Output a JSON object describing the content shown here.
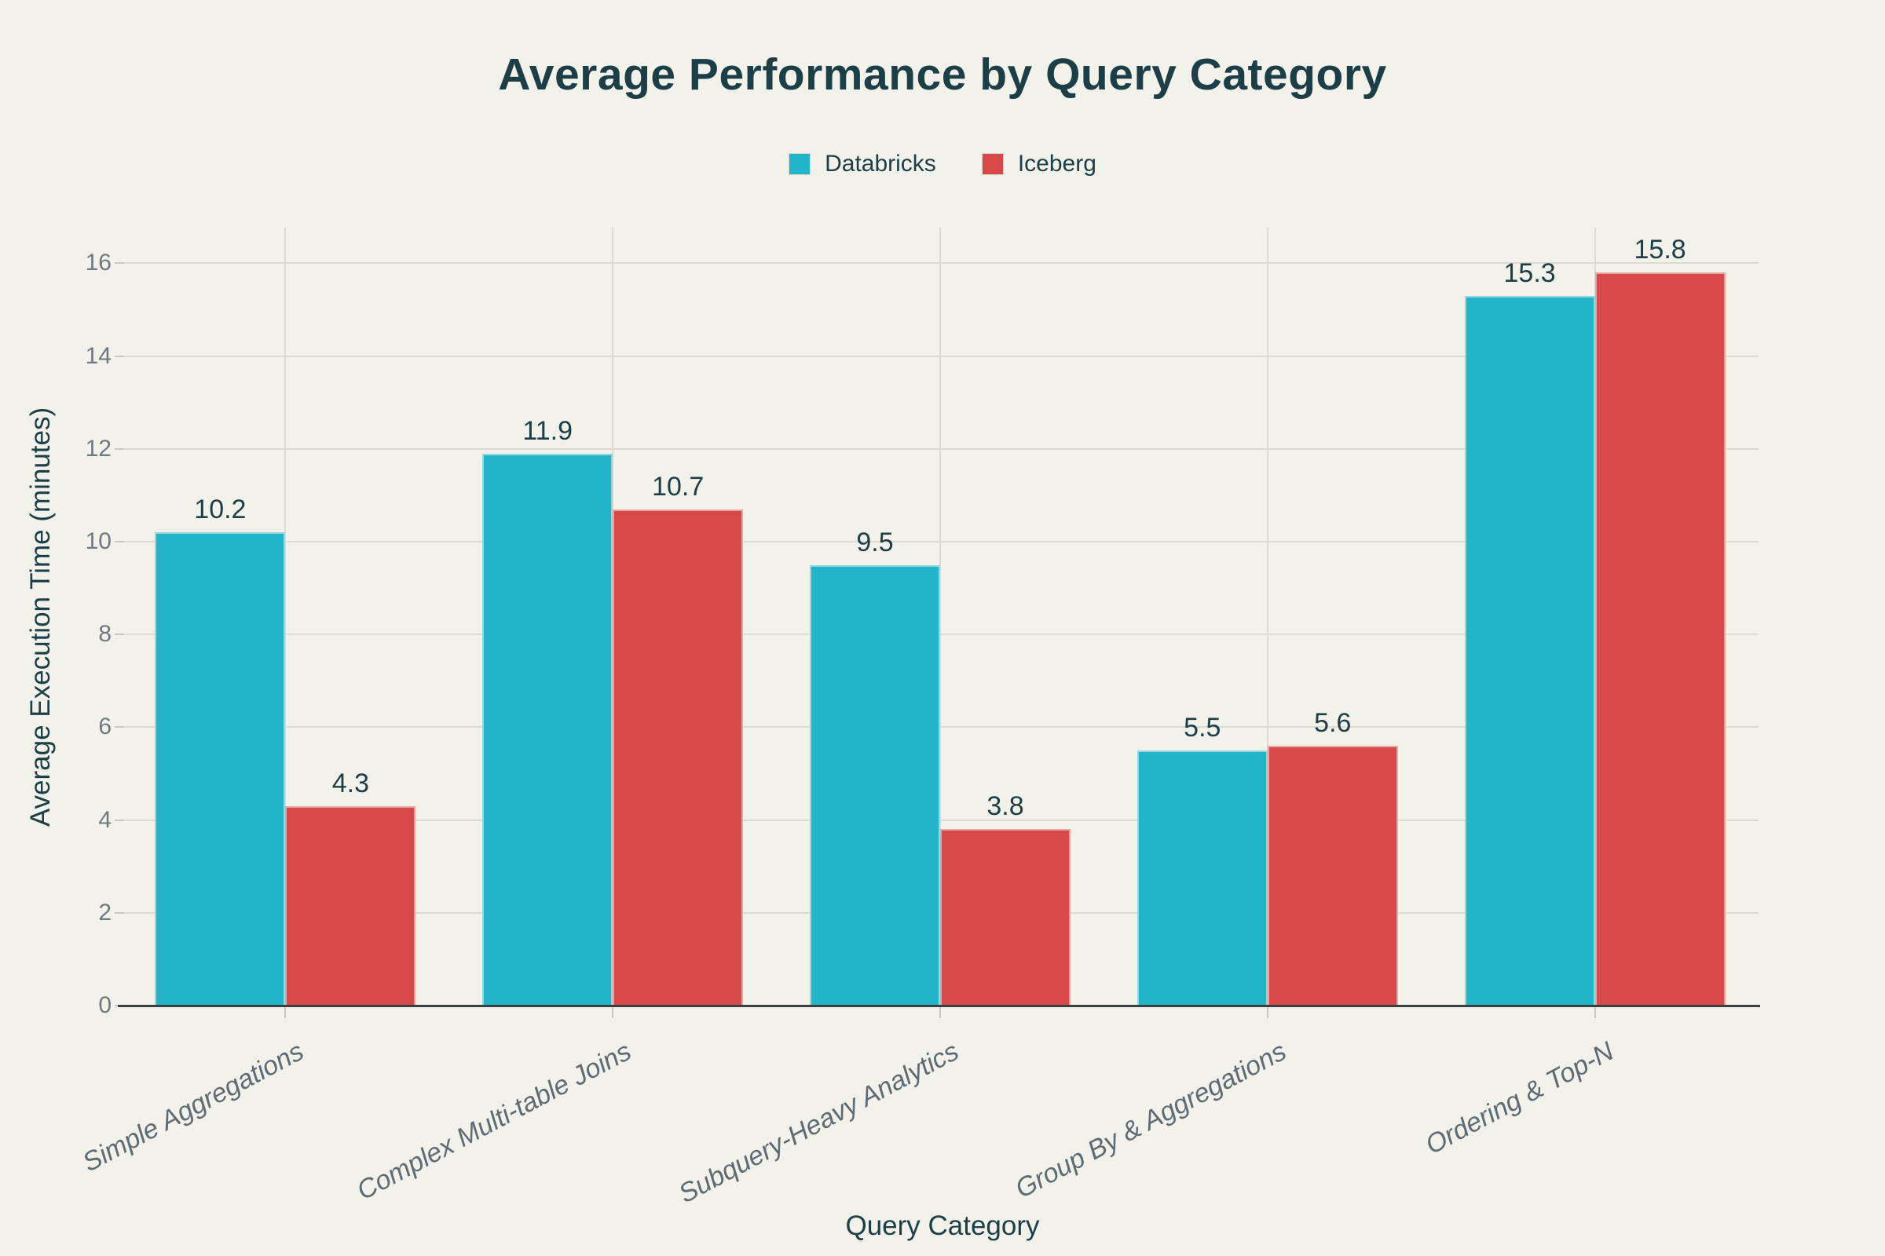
{
  "title": "Average Performance by Query Category",
  "legend": {
    "items": [
      {
        "label": "Databricks",
        "color": "#22b4c8"
      },
      {
        "label": "Iceberg",
        "color": "#d74848"
      }
    ]
  },
  "chart_data": {
    "type": "bar",
    "title": "Average Performance by Query Category",
    "categories": [
      "Simple Aggregations",
      "Complex Multi-table Joins",
      "Subquery-Heavy Analytics",
      "Group By & Aggregations",
      "Ordering & Top-N"
    ],
    "series": [
      {
        "name": "Databricks",
        "color": "#22b4c8",
        "values": [
          10.2,
          11.9,
          9.5,
          5.5,
          15.3
        ]
      },
      {
        "name": "Iceberg",
        "color": "#d74848",
        "values": [
          4.3,
          10.7,
          3.8,
          5.6,
          15.8
        ]
      }
    ],
    "xlabel": "Query Category",
    "ylabel": "Average Execution Time (minutes)",
    "ylim": [
      0,
      16.8
    ],
    "yticks": [
      0,
      2,
      4,
      6,
      8,
      10,
      12,
      14,
      16
    ],
    "grid": true,
    "grid_vertical_at_category_centers": true,
    "legend_position": "top-center",
    "value_labels": true,
    "colors": {
      "background": "#f2f1ea",
      "gridline": "#dcdad1",
      "axis_line": "#3a3e3d",
      "y_tick_label": "#6f7980",
      "x_category_label": "#5d6b74",
      "text_dark": "#1b3e47"
    }
  }
}
